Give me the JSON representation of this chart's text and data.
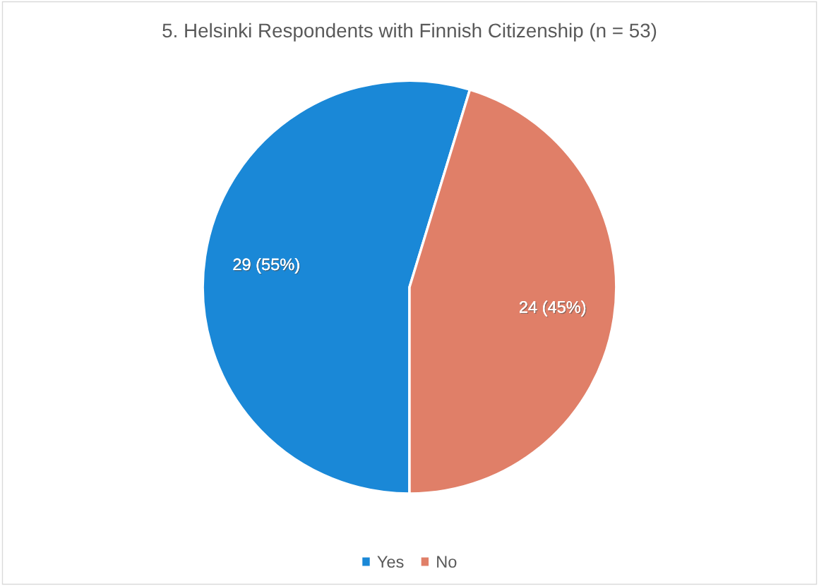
{
  "chart_data": {
    "type": "pie",
    "title": "5. Helsinki Respondents with Finnish Citizenship (n = 53)",
    "categories": [
      "Yes",
      "No"
    ],
    "values": [
      29,
      24
    ],
    "value_labels": [
      "29 (55%)",
      "24 (45%)"
    ],
    "colors": [
      "#1a88d7",
      "#e07f68"
    ],
    "legend": "bottom"
  }
}
